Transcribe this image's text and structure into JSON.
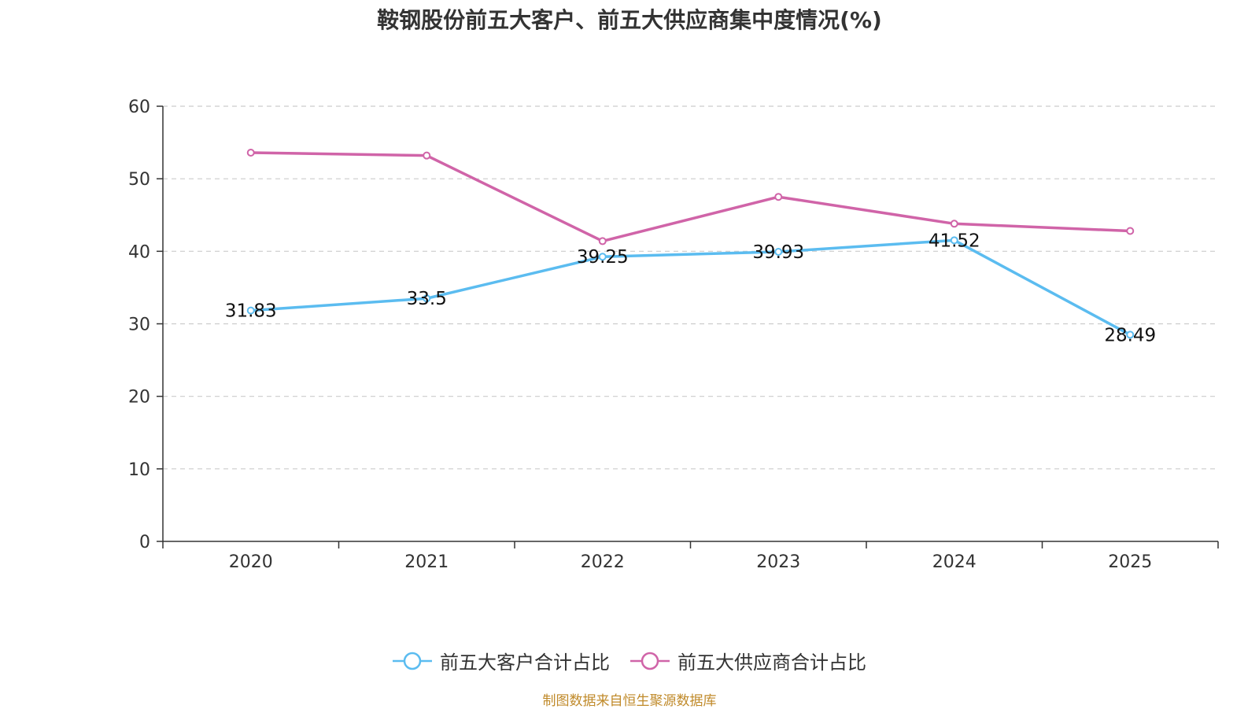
{
  "chart_data": {
    "type": "line",
    "title": "鞍钢股份前五大客户、前五大供应商集中度情况(%)",
    "categories": [
      "2020",
      "2021",
      "2022",
      "2023",
      "2024",
      "2025"
    ],
    "series": [
      {
        "name": "前五大客户合计占比",
        "color": "#5bbcf0",
        "values": [
          31.83,
          33.5,
          39.25,
          39.93,
          41.52,
          28.49
        ],
        "labels_shown": true
      },
      {
        "name": "前五大供应商合计占比",
        "color": "#d064a8",
        "values": [
          53.6,
          53.2,
          41.4,
          47.5,
          43.8,
          42.8
        ],
        "labels_shown": false
      }
    ],
    "y_ticks": [
      "0",
      "10",
      "20",
      "30",
      "40",
      "50",
      "60"
    ],
    "ylim": [
      0,
      60
    ],
    "grid": true,
    "legend_position": "bottom"
  },
  "source": "制图数据来自恒生聚源数据库"
}
